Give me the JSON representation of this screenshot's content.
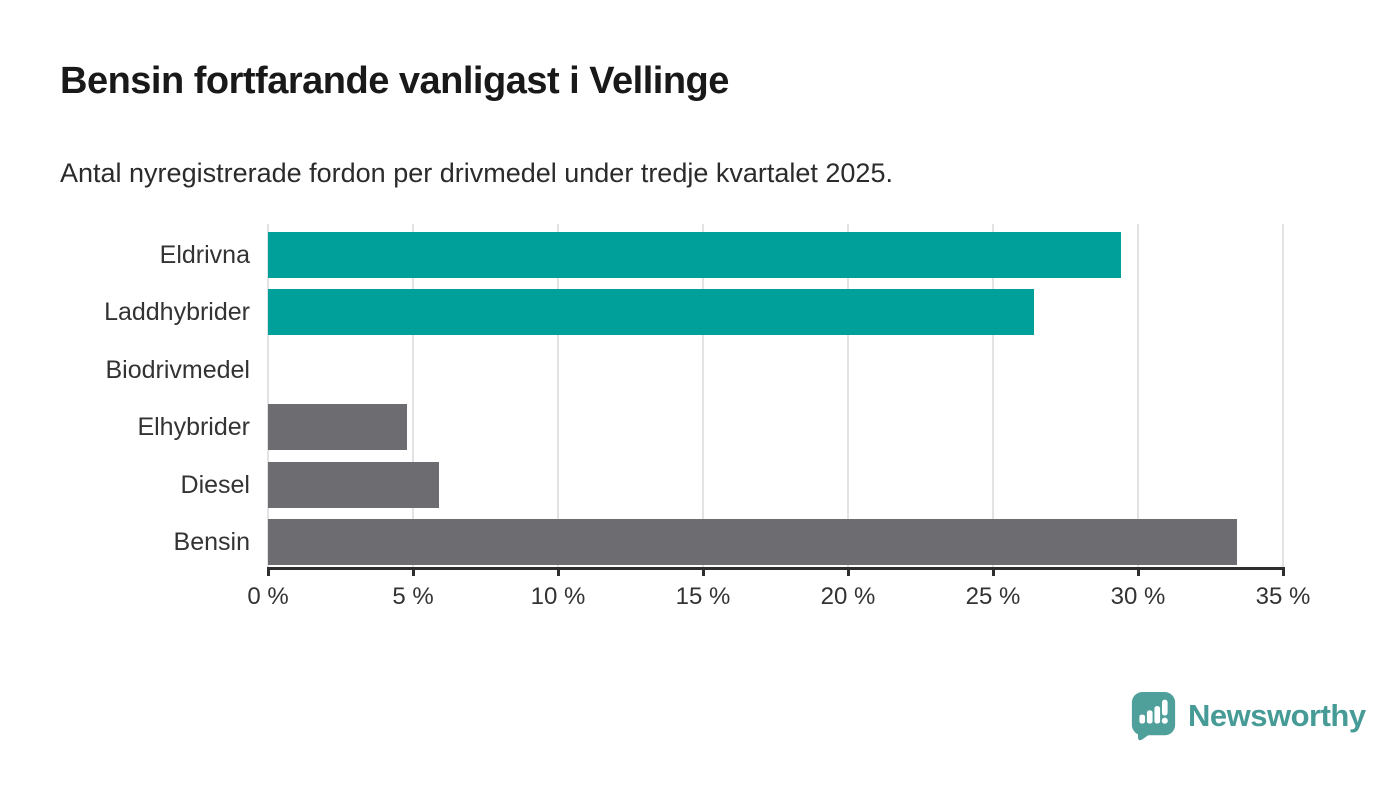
{
  "title": "Bensin fortfarande vanligast i Vellinge",
  "subtitle": "Antal nyregistrerade fordon per drivmedel under tredje kvartalet 2025.",
  "chart_data": {
    "type": "bar",
    "orientation": "horizontal",
    "title": "Bensin fortfarande vanligast i Vellinge",
    "subtitle": "Antal nyregistrerade fordon per drivmedel under tredje kvartalet 2025.",
    "categories": [
      "Eldrivna",
      "Laddhybrider",
      "Biodrivmedel",
      "Elhybrider",
      "Diesel",
      "Bensin"
    ],
    "values": [
      29.4,
      26.4,
      0,
      4.8,
      5.9,
      33.4
    ],
    "unit": "%",
    "bar_colors": [
      "#00a09a",
      "#00a09a",
      "#6c6c71",
      "#6c6c71",
      "#6c6c71",
      "#6c6c71"
    ],
    "xlim": [
      0,
      35
    ],
    "xticks": [
      0,
      5,
      10,
      15,
      20,
      25,
      30,
      35
    ],
    "xtick_labels": [
      "0 %",
      "5 %",
      "10 %",
      "15 %",
      "20 %",
      "25 %",
      "30 %",
      "35 %"
    ],
    "grid": true,
    "legend": false,
    "xlabel": "",
    "ylabel": ""
  },
  "colors": {
    "accent_teal": "#00a09a",
    "neutral_gray": "#6c6c71",
    "axis": "#2e2e2e",
    "gridline": "#e3e3e3",
    "text": "#333333",
    "logo_teal": "#479b96"
  },
  "footer": {
    "brand": "Newsworthy"
  }
}
